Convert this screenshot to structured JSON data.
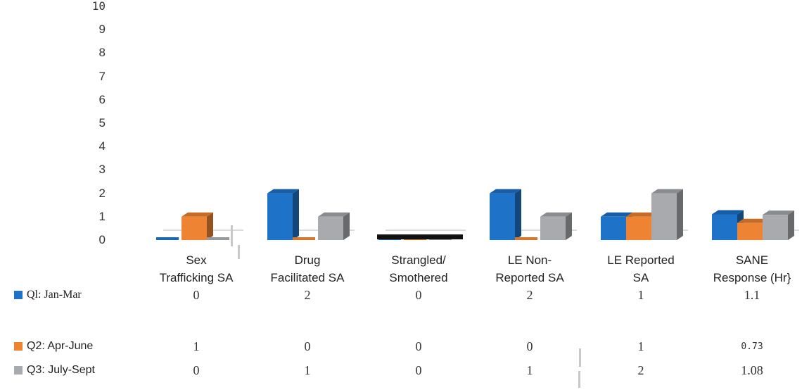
{
  "chart_data": {
    "type": "bar",
    "categories": [
      [
        "Sex",
        "Trafficking SA"
      ],
      [
        "Drug",
        "Facilitated  SA"
      ],
      [
        "Strangled/",
        "Smothered"
      ],
      [
        "LE Non-",
        "Reported SA"
      ],
      [
        "LE Reported",
        "SA"
      ],
      [
        "SANE",
        "Response (Hr}"
      ]
    ],
    "series": [
      {
        "name": "Ql:  Jan-Mar",
        "color": "#1e73c8",
        "values": [
          0,
          2,
          0,
          2,
          1,
          1.1
        ],
        "labels": [
          "0",
          "2",
          "0",
          "2",
          "1",
          "1.1"
        ]
      },
      {
        "name": "Q2: Apr-June",
        "color": "#ee8433",
        "values": [
          1,
          0,
          0,
          0,
          1,
          0.73
        ],
        "labels": [
          "1",
          "0",
          "0",
          "0",
          "1",
          "0.73"
        ]
      },
      {
        "name": "Q3: July-Sept",
        "color": "#a8aaad",
        "values": [
          0,
          1,
          0,
          1,
          2,
          1.08
        ],
        "labels": [
          "0",
          "1",
          "0",
          "1",
          "2",
          "1.08"
        ]
      }
    ],
    "ylim": [
      0,
      10
    ],
    "yticks": [
      "0",
      "1",
      "2",
      "3",
      "4",
      "5",
      "6",
      "7",
      "8",
      "9",
      "10"
    ],
    "grid": false,
    "legend": "left, as data table rows"
  }
}
